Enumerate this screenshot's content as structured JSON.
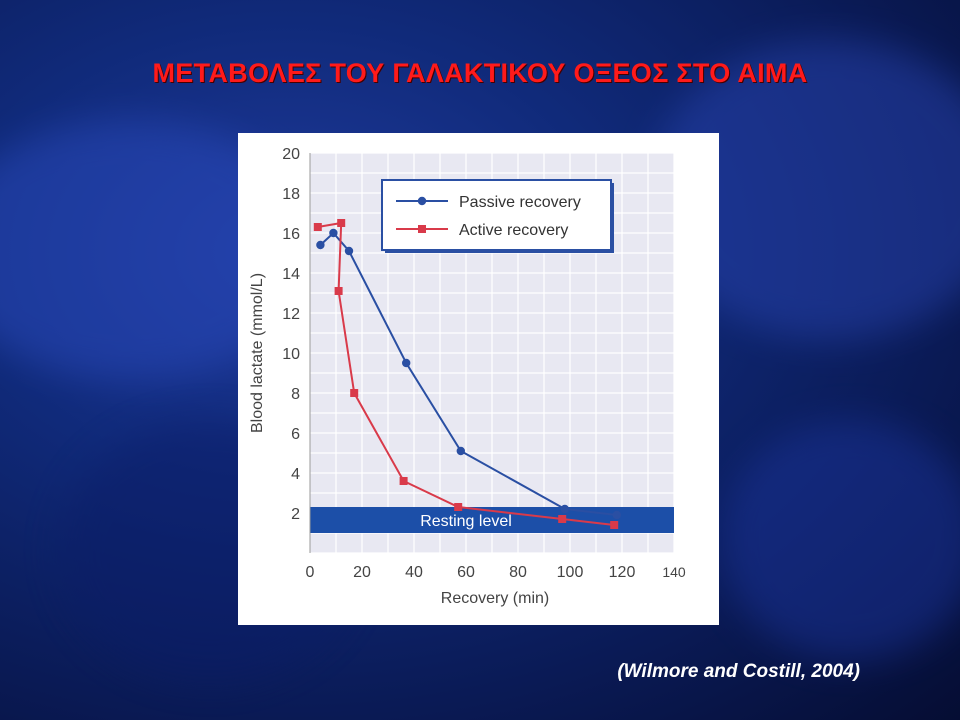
{
  "slide": {
    "title": "ΜΕΤΑΒΟΛΕΣ  ΤΟΥ ΓΑΛΑΚΤΙΚΟΥ ΟΞΕΟΣ ΣΤΟ ΑΙΜΑ",
    "title_color": "#ff1a1a",
    "citation": "(Wilmore and Costill, 2004)"
  },
  "chart_data": {
    "type": "line",
    "xlabel": "Recovery (min)",
    "ylabel": "Blood lactate (mmol/L)",
    "xlim": [
      0,
      140
    ],
    "ylim": [
      0,
      20
    ],
    "xticks": [
      0,
      20,
      40,
      60,
      80,
      100,
      120,
      140
    ],
    "yticks": [
      2,
      4,
      6,
      8,
      10,
      12,
      14,
      16,
      18,
      20
    ],
    "grid": true,
    "legend_position": "top-right",
    "series": [
      {
        "name": "Passive recovery",
        "color": "#2a4fa3",
        "marker": "circle",
        "x": [
          4,
          9,
          15,
          37,
          58,
          98,
          118
        ],
        "y": [
          15.4,
          16.0,
          15.1,
          9.5,
          5.1,
          2.2,
          1.9
        ]
      },
      {
        "name": "Active recovery",
        "color": "#d93a4a",
        "marker": "square",
        "x": [
          3,
          12,
          11,
          17,
          36,
          57,
          97,
          117
        ],
        "y": [
          16.3,
          16.5,
          13.1,
          8.0,
          3.6,
          2.3,
          1.7,
          1.4
        ]
      }
    ],
    "annotation": {
      "label": "Resting level",
      "y_range": [
        1,
        2.3
      ],
      "color": "#1c4fa8"
    }
  }
}
